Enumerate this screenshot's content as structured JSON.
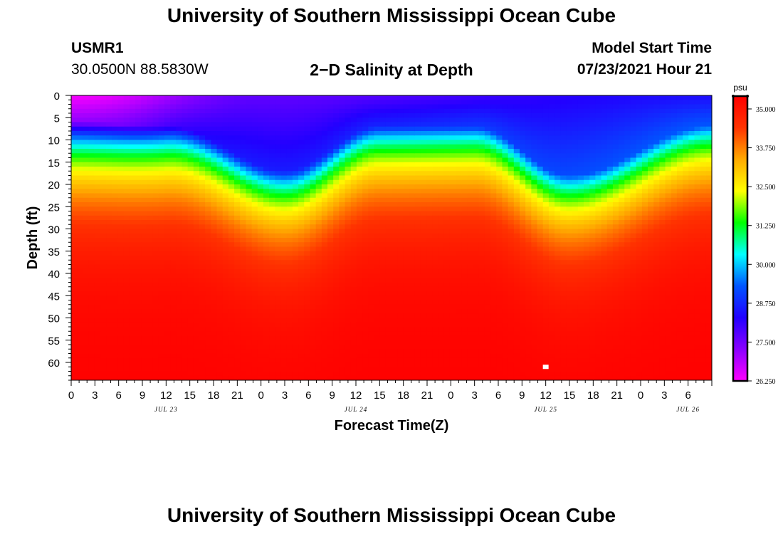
{
  "page": {
    "title_top": "University of Southern Mississippi Ocean Cube",
    "title_bottom": "University of Southern Mississippi Ocean Cube",
    "station_id": "USMR1",
    "station_coords": "30.0500N  88.5830W",
    "plot_title": "2−D Salinity at Depth",
    "model_label": "Model Start Time",
    "model_time": "07/23/2021 Hour 21"
  },
  "colors": {
    "ramp": [
      "#ff00ff",
      "#8a00ff",
      "#2200ff",
      "#0055ff",
      "#00ffff",
      "#00ff00",
      "#ffff00",
      "#ffaa00",
      "#ff3300",
      "#ff0000"
    ]
  },
  "chart_data": {
    "type": "heatmap",
    "title": "2−D Salinity at Depth",
    "xlabel": "Forecast Time(Z)",
    "ylabel": "Depth (ft)",
    "xlim_hours": [
      0,
      81
    ],
    "ylim_ft": [
      0,
      64
    ],
    "x_tick_labels": [
      "0",
      "3",
      "6",
      "9",
      "12",
      "15",
      "18",
      "21",
      "0",
      "3",
      "6",
      "9",
      "12",
      "15",
      "18",
      "21",
      "0",
      "3",
      "6",
      "9",
      "12",
      "15",
      "18",
      "21",
      "0",
      "3",
      "6"
    ],
    "x_tick_hours": [
      0,
      3,
      6,
      9,
      12,
      15,
      18,
      21,
      24,
      27,
      30,
      33,
      36,
      39,
      42,
      45,
      48,
      51,
      54,
      57,
      60,
      63,
      66,
      69,
      72,
      75,
      78
    ],
    "date_labels": [
      {
        "text": "JUL 23",
        "hour": 12
      },
      {
        "text": "JUL 24",
        "hour": 36
      },
      {
        "text": "JUL 25",
        "hour": 60
      },
      {
        "text": "JUL 26",
        "hour": 78
      }
    ],
    "y_ticks": [
      0,
      5,
      10,
      15,
      20,
      25,
      30,
      35,
      40,
      45,
      50,
      55,
      60
    ],
    "colorbar": {
      "unit": "psu",
      "min": 26.25,
      "max": 35.0,
      "tick_labels": [
        "35.000",
        "33.750",
        "32.500",
        "31.250",
        "30.000",
        "28.750",
        "27.500",
        "26.250"
      ],
      "tick_values": [
        35.0,
        33.75,
        32.5,
        31.25,
        30.0,
        28.75,
        27.5,
        26.25
      ]
    },
    "halocline_depth_ft": [
      {
        "hour": 0,
        "depth": 11
      },
      {
        "hour": 12,
        "depth": 12
      },
      {
        "hour": 27,
        "depth": 22
      },
      {
        "hour": 39,
        "depth": 12
      },
      {
        "hour": 51,
        "depth": 12
      },
      {
        "hour": 63,
        "depth": 23
      },
      {
        "hour": 81,
        "depth": 12
      }
    ],
    "surface_salinity_psu": [
      {
        "hour": 0,
        "value": 26.3
      },
      {
        "hour": 24,
        "value": 27.6
      },
      {
        "hour": 81,
        "value": 28.3
      }
    ],
    "bottom_salinity_psu": 35.0,
    "missing_cell": {
      "hour": 60,
      "depth": 61
    }
  }
}
